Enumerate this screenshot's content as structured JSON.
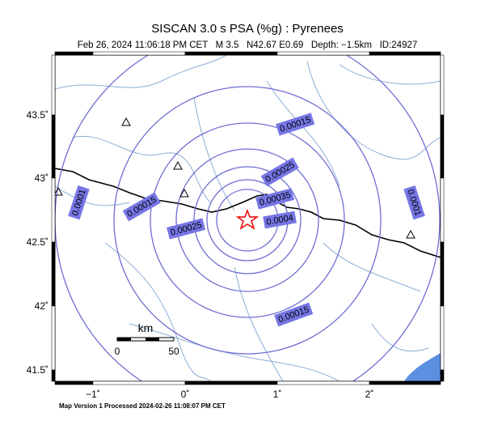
{
  "header": {
    "title": "SISCAN 3.0 s PSA (%g) : Pyrenees",
    "subtitle": "Feb 26, 2024 11:06:18 PM CET   M 3.5   N42.67 E0.69   Depth: −1.5km   ID:24927"
  },
  "map": {
    "lon_ticks": [
      "−1˚",
      "0˚",
      "1˚",
      "2˚"
    ],
    "lat_ticks": [
      "43.5˚",
      "43˚",
      "42.5˚",
      "42˚",
      "41.5˚"
    ],
    "contour_labels": [
      "0.0001",
      "0.00015",
      "0.00015",
      "0.00025",
      "0.00035",
      "0.0004",
      "0.00025",
      "0.00015",
      "0.0001"
    ],
    "scale": {
      "title": "km",
      "labels": [
        "0",
        "50"
      ]
    }
  },
  "footer": "Map Version 1 Processed 2024-02-26 11:08:07 PM CET"
}
